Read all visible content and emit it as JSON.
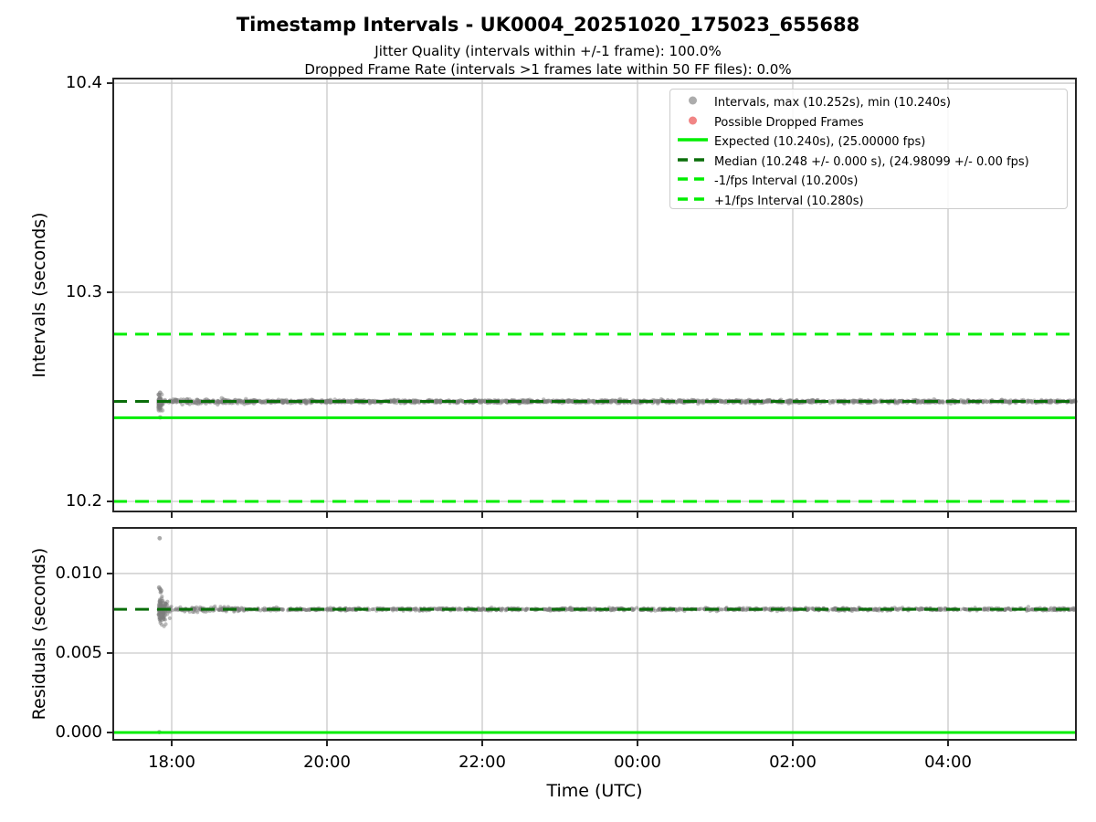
{
  "figure": {
    "title": "Timestamp Intervals - UK0004_20251020_175023_655688",
    "subtitle1": "Jitter Quality (intervals within +/-1 frame): 100.0%",
    "subtitle2": "Dropped Frame Rate (intervals >1 frames late within 50 FF files): 0.0%"
  },
  "colors": {
    "expected_line": "#00ee00",
    "median_line": "#0a6e0a",
    "interval_marker": "#7d7d7d",
    "dropped_marker": "#ee7070",
    "grid": "#c9c9c9",
    "spine": "#262626",
    "text": "#000000"
  },
  "legend": {
    "items": [
      {
        "name": "intervals",
        "label": "Intervals, max (10.252s), min (10.240s)",
        "swatch": "marker",
        "color": "#9e9e9e"
      },
      {
        "name": "dropped",
        "label": "Possible Dropped Frames",
        "swatch": "marker",
        "color": "#ee7070"
      },
      {
        "name": "expected",
        "label": "Expected (10.240s), (25.00000 fps)",
        "swatch": "line",
        "color": "#00ee00"
      },
      {
        "name": "median",
        "label": "Median (10.248 +/- 0.000 s), (24.98099 +/- 0.00 fps)",
        "swatch": "dashed",
        "color": "#0a6e0a"
      },
      {
        "name": "minus-1-fps",
        "label": "-1/fps Interval (10.200s)",
        "swatch": "dashed",
        "color": "#00ee00"
      },
      {
        "name": "plus-1-fps",
        "label": "+1/fps Interval (10.280s)",
        "swatch": "dashed",
        "color": "#00ee00"
      }
    ]
  },
  "xaxis": {
    "label": "Time (UTC)",
    "ticks": [
      {
        "t": 18,
        "label": "18:00"
      },
      {
        "t": 20,
        "label": "20:00"
      },
      {
        "t": 22,
        "label": "22:00"
      },
      {
        "t": 24,
        "label": "00:00"
      },
      {
        "t": 26,
        "label": "02:00"
      },
      {
        "t": 28,
        "label": "04:00"
      }
    ],
    "xlim": [
      17.247,
      29.647
    ]
  },
  "chart_data": [
    {
      "type": "scatter",
      "name": "intervals-plot",
      "ylabel": "Intervals (seconds)",
      "ylim": [
        10.1952,
        10.4022
      ],
      "yticks": [
        {
          "v": 10.2,
          "label": "10.2"
        },
        {
          "v": 10.3,
          "label": "10.3"
        },
        {
          "v": 10.4,
          "label": "10.4"
        }
      ],
      "show_xtick_labels": false,
      "hlines": [
        {
          "name": "expected-10.240s",
          "v": 10.24,
          "style": "solid",
          "color": "#00ee00"
        },
        {
          "name": "minus-1fps-10.200s",
          "v": 10.2,
          "style": "dashed",
          "color": "#00ee00"
        },
        {
          "name": "plus-1fps-10.280s",
          "v": 10.28,
          "style": "dashed",
          "color": "#00ee00"
        },
        {
          "name": "median-10.248s",
          "v": 10.2478,
          "style": "dashed",
          "color": "#0a6e0a"
        }
      ],
      "series": {
        "band": {
          "t_start": 17.86,
          "t_end": 29.647,
          "center": 10.2478,
          "sigma": 0.00032,
          "n": 1500,
          "r": 2.3
        },
        "cluster": {
          "t_start": 17.83,
          "spread_t": 0.025,
          "center": 10.2473,
          "sigma": 0.0016,
          "clip": [
            10.2435,
            10.2518
          ],
          "n": 80,
          "r": 2.3
        },
        "points": [
          [
            17.85,
            10.252
          ],
          [
            17.852,
            10.2402
          ]
        ]
      },
      "stats": {
        "max_s": 10.252,
        "min_s": 10.24,
        "median_s": 10.248,
        "expected_s": 10.24,
        "expected_fps": 25.0,
        "median_fps": 24.98099
      }
    },
    {
      "type": "scatter",
      "name": "residuals-plot",
      "ylabel": "Residuals (seconds)",
      "ylim": [
        -0.00046,
        0.01287
      ],
      "yticks": [
        {
          "v": 0.0,
          "label": "0.000"
        },
        {
          "v": 0.005,
          "label": "0.005"
        },
        {
          "v": 0.01,
          "label": "0.010"
        }
      ],
      "show_xtick_labels": true,
      "hlines": [
        {
          "name": "zero-residual",
          "v": 0.0,
          "style": "solid",
          "color": "#00ee00"
        },
        {
          "name": "median-residual-0.0077s",
          "v": 0.00775,
          "style": "dashed",
          "color": "#0a6e0a"
        }
      ],
      "series": {
        "band": {
          "t_start": 17.86,
          "t_end": 29.647,
          "center": 0.00775,
          "sigma": 4.2e-05,
          "n": 1400,
          "r": 2.0
        },
        "cluster": {
          "t_start": 17.83,
          "spread_t": 0.05,
          "center": 0.00775,
          "sigma": 0.00042,
          "clip": [
            0.00668,
            0.00882
          ],
          "n": 110,
          "r": 2.1
        },
        "points": [
          [
            17.845,
            0.01222
          ],
          [
            17.838,
            0.00912
          ],
          [
            17.851,
            0.00902
          ],
          [
            17.865,
            0.00892
          ],
          [
            17.84,
            2e-05
          ]
        ]
      }
    }
  ]
}
